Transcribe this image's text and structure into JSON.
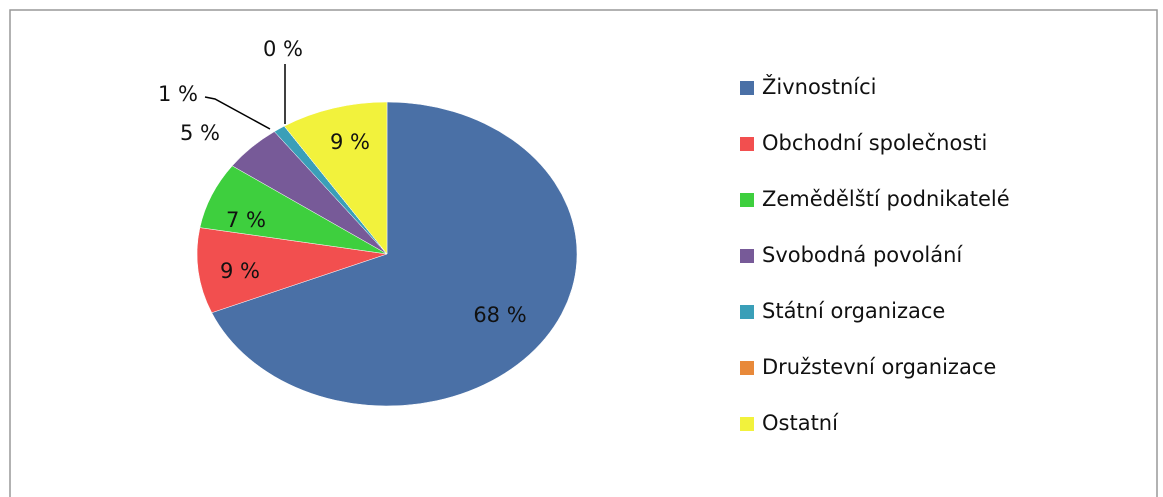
{
  "chart_data": {
    "type": "pie",
    "categories": [
      "Živnostníci",
      "Obchodní společnosti",
      "Zemědělští podnikatelé",
      "Svobodná povolání",
      "Státní organizace",
      "Družstevní organizace",
      "Ostatní"
    ],
    "values": [
      68,
      9,
      7,
      5,
      1,
      0,
      9
    ],
    "value_labels": [
      "68 %",
      "9 %",
      "7 %",
      "5 %",
      "1 %",
      "0 %",
      "9 %"
    ],
    "colors": [
      "#4a70a6",
      "#f24f4f",
      "#3ecf3e",
      "#775a98",
      "#3a9fb8",
      "#e8893a",
      "#f2f23c"
    ],
    "legend": "right"
  }
}
